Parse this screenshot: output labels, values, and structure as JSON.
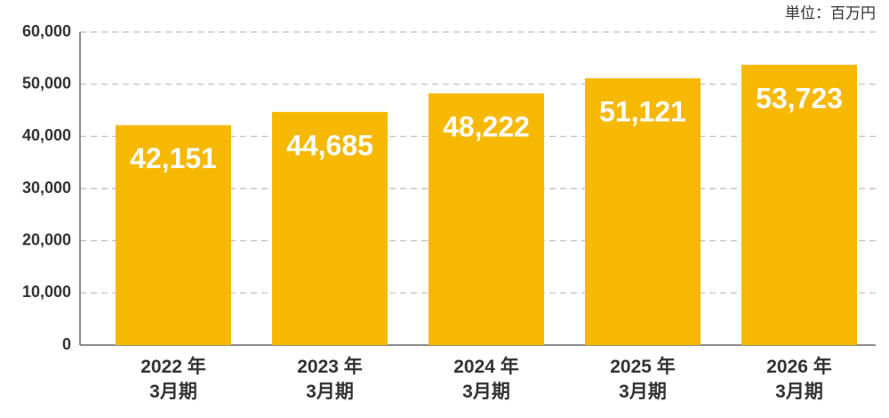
{
  "chart_data": {
    "type": "bar",
    "unit_label": "単位：百万円",
    "categories": [
      "2022 年\n3月期",
      "2023 年\n3月期",
      "2024 年\n3月期",
      "2025 年\n3月期",
      "2026 年\n3月期"
    ],
    "values": [
      42151,
      44685,
      48222,
      51121,
      53723
    ],
    "value_labels": [
      "42,151",
      "44,685",
      "48,222",
      "51,121",
      "53,723"
    ],
    "color": "#f6b800",
    "ylim": [
      0,
      60000
    ],
    "yticks": [
      0,
      {
        "value": 10000,
        "label": "10,000"
      },
      {
        "value": 20000,
        "label": "20,000"
      },
      {
        "value": 30000,
        "label": "30,000"
      },
      {
        "value": 40000,
        "label": "40,000"
      },
      {
        "value": 50000,
        "label": "50,000"
      },
      {
        "value": 60000,
        "label": "60,000"
      }
    ],
    "grid": true
  }
}
